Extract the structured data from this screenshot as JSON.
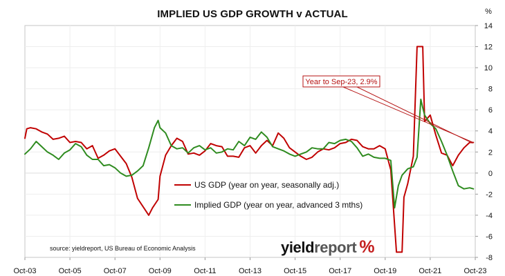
{
  "chart_data": {
    "type": "line",
    "title": "IMPLIED US GDP GROWTH v ACTUAL",
    "unit_label": "%",
    "x_labels": [
      "Oct-03",
      "Oct-05",
      "Oct-07",
      "Oct-09",
      "Oct-11",
      "Oct-13",
      "Oct-15",
      "Oct-17",
      "Oct-19",
      "Oct-21",
      "Oct-23"
    ],
    "ylim": [
      -8,
      14
    ],
    "yticks": [
      -8,
      -6,
      -4,
      -2,
      0,
      2,
      4,
      6,
      8,
      10,
      12,
      14
    ],
    "legend": {
      "placement": "lower-middle",
      "items": [
        {
          "name": "US GDP (year on year, seasonally adj.)",
          "color": "#c00000"
        },
        {
          "name": "Implied GDP (year on year, advanced 3 mths)",
          "color": "#2e8b1f"
        }
      ]
    },
    "annotation": {
      "text": "Year to Sep-23, 2.9%",
      "color": "#b51212",
      "target_date": "2023-09",
      "target_value": 2.9
    },
    "source": "source: yieldreport, US Bureau of Economic Analysis",
    "logo": {
      "text_a": "yield",
      "text_b": "report",
      "text_c": "%"
    },
    "series": [
      {
        "name": "US GDP (year on year, seasonally adj.)",
        "color": "#c00000",
        "points": [
          {
            "date": "2003-10",
            "value": 3.3
          },
          {
            "date": "2003-11",
            "value": 4.2
          },
          {
            "date": "2004-01",
            "value": 4.3
          },
          {
            "date": "2004-04",
            "value": 4.2
          },
          {
            "date": "2004-07",
            "value": 3.9
          },
          {
            "date": "2004-10",
            "value": 3.7
          },
          {
            "date": "2005-01",
            "value": 3.2
          },
          {
            "date": "2005-04",
            "value": 3.3
          },
          {
            "date": "2005-07",
            "value": 3.5
          },
          {
            "date": "2005-10",
            "value": 2.9
          },
          {
            "date": "2006-01",
            "value": 3.0
          },
          {
            "date": "2006-04",
            "value": 2.9
          },
          {
            "date": "2006-07",
            "value": 2.3
          },
          {
            "date": "2006-10",
            "value": 2.6
          },
          {
            "date": "2007-01",
            "value": 1.4
          },
          {
            "date": "2007-04",
            "value": 1.7
          },
          {
            "date": "2007-07",
            "value": 2.1
          },
          {
            "date": "2007-10",
            "value": 2.3
          },
          {
            "date": "2008-01",
            "value": 1.6
          },
          {
            "date": "2008-04",
            "value": 0.9
          },
          {
            "date": "2008-07",
            "value": -0.4
          },
          {
            "date": "2008-10",
            "value": -2.4
          },
          {
            "date": "2009-01",
            "value": -3.2
          },
          {
            "date": "2009-04",
            "value": -4.0
          },
          {
            "date": "2009-06",
            "value": -3.3
          },
          {
            "date": "2009-09",
            "value": -2.5
          },
          {
            "date": "2009-10",
            "value": -0.3
          },
          {
            "date": "2010-01",
            "value": 1.7
          },
          {
            "date": "2010-04",
            "value": 2.6
          },
          {
            "date": "2010-07",
            "value": 3.3
          },
          {
            "date": "2010-10",
            "value": 3.0
          },
          {
            "date": "2011-01",
            "value": 1.8
          },
          {
            "date": "2011-04",
            "value": 1.9
          },
          {
            "date": "2011-07",
            "value": 1.7
          },
          {
            "date": "2011-10",
            "value": 2.1
          },
          {
            "date": "2012-01",
            "value": 2.8
          },
          {
            "date": "2012-04",
            "value": 2.6
          },
          {
            "date": "2012-07",
            "value": 2.5
          },
          {
            "date": "2012-10",
            "value": 1.6
          },
          {
            "date": "2013-01",
            "value": 1.6
          },
          {
            "date": "2013-04",
            "value": 1.5
          },
          {
            "date": "2013-07",
            "value": 2.4
          },
          {
            "date": "2013-10",
            "value": 2.6
          },
          {
            "date": "2014-01",
            "value": 1.9
          },
          {
            "date": "2014-04",
            "value": 2.6
          },
          {
            "date": "2014-07",
            "value": 3.1
          },
          {
            "date": "2014-10",
            "value": 2.6
          },
          {
            "date": "2015-01",
            "value": 3.8
          },
          {
            "date": "2015-04",
            "value": 3.3
          },
          {
            "date": "2015-07",
            "value": 2.4
          },
          {
            "date": "2015-10",
            "value": 2.0
          },
          {
            "date": "2016-01",
            "value": 1.6
          },
          {
            "date": "2016-04",
            "value": 1.3
          },
          {
            "date": "2016-07",
            "value": 1.5
          },
          {
            "date": "2016-10",
            "value": 2.0
          },
          {
            "date": "2017-01",
            "value": 2.3
          },
          {
            "date": "2017-04",
            "value": 2.2
          },
          {
            "date": "2017-07",
            "value": 2.4
          },
          {
            "date": "2017-10",
            "value": 2.8
          },
          {
            "date": "2018-01",
            "value": 2.9
          },
          {
            "date": "2018-04",
            "value": 3.2
          },
          {
            "date": "2018-07",
            "value": 3.1
          },
          {
            "date": "2018-10",
            "value": 2.5
          },
          {
            "date": "2019-01",
            "value": 2.3
          },
          {
            "date": "2019-04",
            "value": 2.3
          },
          {
            "date": "2019-07",
            "value": 2.6
          },
          {
            "date": "2019-10",
            "value": 2.3
          },
          {
            "date": "2020-01",
            "value": 0.3
          },
          {
            "date": "2020-04",
            "value": -7.5
          },
          {
            "date": "2020-07",
            "value": -7.5
          },
          {
            "date": "2020-08",
            "value": -2.3
          },
          {
            "date": "2020-10",
            "value": -1.0
          },
          {
            "date": "2021-01",
            "value": 1.6
          },
          {
            "date": "2021-03",
            "value": 12.0
          },
          {
            "date": "2021-06",
            "value": 12.0
          },
          {
            "date": "2021-07",
            "value": 4.9
          },
          {
            "date": "2021-10",
            "value": 5.5
          },
          {
            "date": "2022-01",
            "value": 3.6
          },
          {
            "date": "2022-04",
            "value": 1.9
          },
          {
            "date": "2022-07",
            "value": 1.7
          },
          {
            "date": "2022-10",
            "value": 0.7
          },
          {
            "date": "2023-01",
            "value": 1.7
          },
          {
            "date": "2023-04",
            "value": 2.4
          },
          {
            "date": "2023-07",
            "value": 2.9
          },
          {
            "date": "2023-09",
            "value": 2.9
          }
        ]
      },
      {
        "name": "Implied GDP (year on year, advanced 3 mths)",
        "color": "#2e8b1f",
        "points": [
          {
            "date": "2003-10",
            "value": 1.8
          },
          {
            "date": "2004-01",
            "value": 2.3
          },
          {
            "date": "2004-04",
            "value": 3.0
          },
          {
            "date": "2004-07",
            "value": 2.5
          },
          {
            "date": "2004-10",
            "value": 2.0
          },
          {
            "date": "2005-01",
            "value": 1.7
          },
          {
            "date": "2005-04",
            "value": 1.3
          },
          {
            "date": "2005-07",
            "value": 1.9
          },
          {
            "date": "2005-10",
            "value": 2.2
          },
          {
            "date": "2006-01",
            "value": 2.8
          },
          {
            "date": "2006-04",
            "value": 2.5
          },
          {
            "date": "2006-07",
            "value": 1.7
          },
          {
            "date": "2006-10",
            "value": 1.3
          },
          {
            "date": "2007-01",
            "value": 1.3
          },
          {
            "date": "2007-04",
            "value": 0.7
          },
          {
            "date": "2007-07",
            "value": 0.8
          },
          {
            "date": "2007-10",
            "value": 0.5
          },
          {
            "date": "2008-01",
            "value": 0.0
          },
          {
            "date": "2008-04",
            "value": -0.3
          },
          {
            "date": "2008-07",
            "value": -0.2
          },
          {
            "date": "2008-10",
            "value": 0.2
          },
          {
            "date": "2009-01",
            "value": 0.7
          },
          {
            "date": "2009-04",
            "value": 2.4
          },
          {
            "date": "2009-07",
            "value": 4.3
          },
          {
            "date": "2009-09",
            "value": 5.0
          },
          {
            "date": "2009-10",
            "value": 4.3
          },
          {
            "date": "2010-01",
            "value": 3.8
          },
          {
            "date": "2010-04",
            "value": 2.6
          },
          {
            "date": "2010-07",
            "value": 2.3
          },
          {
            "date": "2010-10",
            "value": 2.4
          },
          {
            "date": "2011-01",
            "value": 1.9
          },
          {
            "date": "2011-04",
            "value": 2.4
          },
          {
            "date": "2011-07",
            "value": 2.6
          },
          {
            "date": "2011-10",
            "value": 2.2
          },
          {
            "date": "2012-01",
            "value": 2.4
          },
          {
            "date": "2012-04",
            "value": 1.9
          },
          {
            "date": "2012-07",
            "value": 2.0
          },
          {
            "date": "2012-10",
            "value": 2.3
          },
          {
            "date": "2013-01",
            "value": 2.2
          },
          {
            "date": "2013-04",
            "value": 3.0
          },
          {
            "date": "2013-07",
            "value": 2.6
          },
          {
            "date": "2013-10",
            "value": 3.4
          },
          {
            "date": "2014-01",
            "value": 3.2
          },
          {
            "date": "2014-04",
            "value": 3.9
          },
          {
            "date": "2014-07",
            "value": 3.4
          },
          {
            "date": "2014-10",
            "value": 2.5
          },
          {
            "date": "2015-01",
            "value": 2.3
          },
          {
            "date": "2015-04",
            "value": 2.1
          },
          {
            "date": "2015-07",
            "value": 1.8
          },
          {
            "date": "2015-10",
            "value": 1.6
          },
          {
            "date": "2016-01",
            "value": 1.8
          },
          {
            "date": "2016-04",
            "value": 2.0
          },
          {
            "date": "2016-07",
            "value": 2.4
          },
          {
            "date": "2016-10",
            "value": 2.3
          },
          {
            "date": "2017-01",
            "value": 2.3
          },
          {
            "date": "2017-04",
            "value": 2.9
          },
          {
            "date": "2017-07",
            "value": 2.8
          },
          {
            "date": "2017-10",
            "value": 3.1
          },
          {
            "date": "2018-01",
            "value": 3.2
          },
          {
            "date": "2018-04",
            "value": 3.0
          },
          {
            "date": "2018-07",
            "value": 2.4
          },
          {
            "date": "2018-10",
            "value": 1.6
          },
          {
            "date": "2019-01",
            "value": 1.8
          },
          {
            "date": "2019-04",
            "value": 1.5
          },
          {
            "date": "2019-07",
            "value": 1.4
          },
          {
            "date": "2019-10",
            "value": 1.4
          },
          {
            "date": "2020-01",
            "value": 1.2
          },
          {
            "date": "2020-03",
            "value": -3.3
          },
          {
            "date": "2020-05",
            "value": -1.2
          },
          {
            "date": "2020-07",
            "value": -0.2
          },
          {
            "date": "2020-10",
            "value": 0.4
          },
          {
            "date": "2021-01",
            "value": 0.6
          },
          {
            "date": "2021-03",
            "value": 1.5
          },
          {
            "date": "2021-05",
            "value": 7.0
          },
          {
            "date": "2021-06",
            "value": 6.2
          },
          {
            "date": "2021-07",
            "value": 5.5
          },
          {
            "date": "2021-10",
            "value": 4.7
          },
          {
            "date": "2022-01",
            "value": 4.2
          },
          {
            "date": "2022-04",
            "value": 3.0
          },
          {
            "date": "2022-07",
            "value": 1.7
          },
          {
            "date": "2022-10",
            "value": 0.2
          },
          {
            "date": "2023-01",
            "value": -1.2
          },
          {
            "date": "2023-04",
            "value": -1.5
          },
          {
            "date": "2023-07",
            "value": -1.4
          },
          {
            "date": "2023-09",
            "value": -1.5
          }
        ]
      }
    ]
  }
}
